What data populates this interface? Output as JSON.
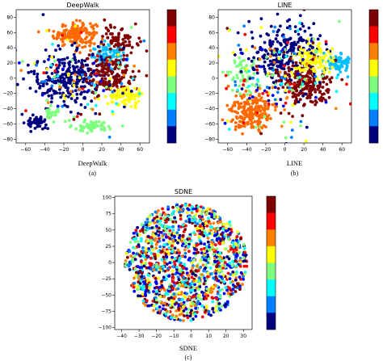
{
  "chart_data": [
    {
      "type": "scatter",
      "title": "DeepWalk",
      "xlabel": "DeepWalk",
      "caption": "(a)",
      "xlim": [
        -70,
        70
      ],
      "ylim": [
        -85,
        90
      ],
      "xticks": [
        -60,
        -40,
        -20,
        0,
        20,
        40,
        60
      ],
      "yticks": [
        -80,
        -60,
        -40,
        -20,
        0,
        20,
        40,
        60,
        80
      ],
      "colorbar": true,
      "colorbar_levels": 8,
      "colormap": [
        "#00007f",
        "#0000ff",
        "#007fff",
        "#00ffff",
        "#7fff7f",
        "#ffff00",
        "#ff7f00",
        "#ff0000",
        "#7f0000"
      ],
      "clusters": [
        {
          "cx": -8,
          "cy": 58,
          "sx": 11,
          "sy": 8,
          "n": 170,
          "color": "#ff6a00"
        },
        {
          "cx": 28,
          "cy": 28,
          "sx": 9,
          "sy": 7,
          "n": 90,
          "color": "#00bfff"
        },
        {
          "cx": 40,
          "cy": 52,
          "sx": 9,
          "sy": 9,
          "n": 70,
          "color": "#7f0000"
        },
        {
          "cx": -15,
          "cy": 0,
          "sx": 20,
          "sy": 18,
          "n": 260,
          "color": "#00007f"
        },
        {
          "cx": 30,
          "cy": 5,
          "sx": 14,
          "sy": 14,
          "n": 150,
          "color": "#7f0000"
        },
        {
          "cx": 45,
          "cy": -25,
          "sx": 9,
          "sy": 7,
          "n": 90,
          "color": "#ffff00"
        },
        {
          "cx": -48,
          "cy": -58,
          "sx": 5,
          "sy": 4,
          "n": 55,
          "color": "#00007f"
        },
        {
          "cx": 10,
          "cy": -63,
          "sx": 12,
          "sy": 4,
          "n": 60,
          "color": "#7fff7f"
        },
        {
          "cx": -32,
          "cy": -48,
          "sx": 4,
          "sy": 5,
          "n": 25,
          "color": "#7fff7f"
        },
        {
          "cx": 0,
          "cy": 5,
          "sx": 35,
          "sy": 30,
          "n": 120,
          "color": "mixed"
        }
      ]
    },
    {
      "type": "scatter",
      "title": "LINE",
      "xlabel": "LINE",
      "caption": "(b)",
      "xlim": [
        -70,
        70
      ],
      "ylim": [
        -85,
        90
      ],
      "xticks": [
        -60,
        -40,
        -20,
        0,
        20,
        40,
        60
      ],
      "yticks": [
        -80,
        -60,
        -40,
        -20,
        0,
        20,
        40,
        60,
        80
      ],
      "colorbar": true,
      "colorbar_levels": 8,
      "colormap": [
        "#00007f",
        "#0000ff",
        "#007fff",
        "#00ffff",
        "#7fff7f",
        "#ffff00",
        "#ff7f00",
        "#ff0000",
        "#7f0000"
      ],
      "clusters": [
        {
          "cx": -35,
          "cy": -45,
          "sx": 11,
          "sy": 12,
          "n": 200,
          "color": "#ff6a00"
        },
        {
          "cx": 55,
          "cy": 20,
          "sx": 7,
          "sy": 7,
          "n": 80,
          "color": "#00bfff"
        },
        {
          "cx": -45,
          "cy": 5,
          "sx": 10,
          "sy": 10,
          "n": 60,
          "color": "#7fff7f"
        },
        {
          "cx": 0,
          "cy": 30,
          "sx": 18,
          "sy": 22,
          "n": 250,
          "color": "#00007f"
        },
        {
          "cx": 20,
          "cy": -10,
          "sx": 14,
          "sy": 14,
          "n": 200,
          "color": "#7f0000"
        },
        {
          "cx": 30,
          "cy": 25,
          "sx": 12,
          "sy": 10,
          "n": 120,
          "color": "#ffff00"
        },
        {
          "cx": 0,
          "cy": 0,
          "sx": 35,
          "sy": 35,
          "n": 200,
          "color": "mixed"
        }
      ]
    },
    {
      "type": "scatter",
      "title": "SDNE",
      "xlabel": "SDNE",
      "caption": "(c)",
      "xlim": [
        -44,
        35
      ],
      "ylim": [
        -103,
        102
      ],
      "xticks": [
        -40,
        -30,
        -20,
        -10,
        0,
        10,
        20,
        30
      ],
      "yticks": [
        -100,
        -75,
        -50,
        -25,
        0,
        25,
        50,
        75,
        100
      ],
      "colorbar": true,
      "colorbar_levels": 8,
      "colormap": [
        "#00007f",
        "#0000ff",
        "#007fff",
        "#00ffff",
        "#7fff7f",
        "#ffff00",
        "#ff7f00",
        "#ff0000",
        "#7f0000"
      ],
      "clusters": [
        {
          "cx": 0,
          "cy": 0,
          "sx": 15,
          "sy": 42,
          "n": 1400,
          "color": "mixed",
          "shape": "blob"
        }
      ]
    }
  ]
}
